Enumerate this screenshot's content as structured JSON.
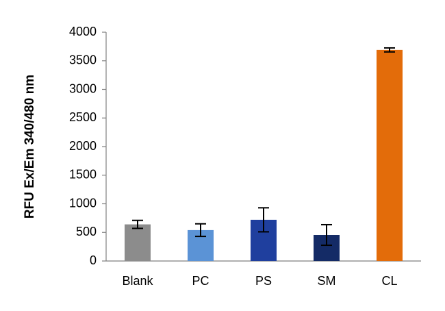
{
  "chart_data": {
    "type": "bar",
    "y_label": "RFU Ex/Em 340/480 nm",
    "categories": [
      "Blank",
      "PC",
      "PS",
      "SM",
      "CL"
    ],
    "values": [
      640,
      540,
      720,
      455,
      3690
    ],
    "errors": [
      70,
      110,
      210,
      180,
      35
    ],
    "colors": [
      "#8c8c8c",
      "#5b93d6",
      "#1f3f9e",
      "#142b66",
      "#e36c0a"
    ],
    "ylim": [
      0,
      4000
    ],
    "yticks": [
      0,
      500,
      1000,
      1500,
      2000,
      2500,
      3000,
      3500,
      4000
    ],
    "grid": false
  }
}
